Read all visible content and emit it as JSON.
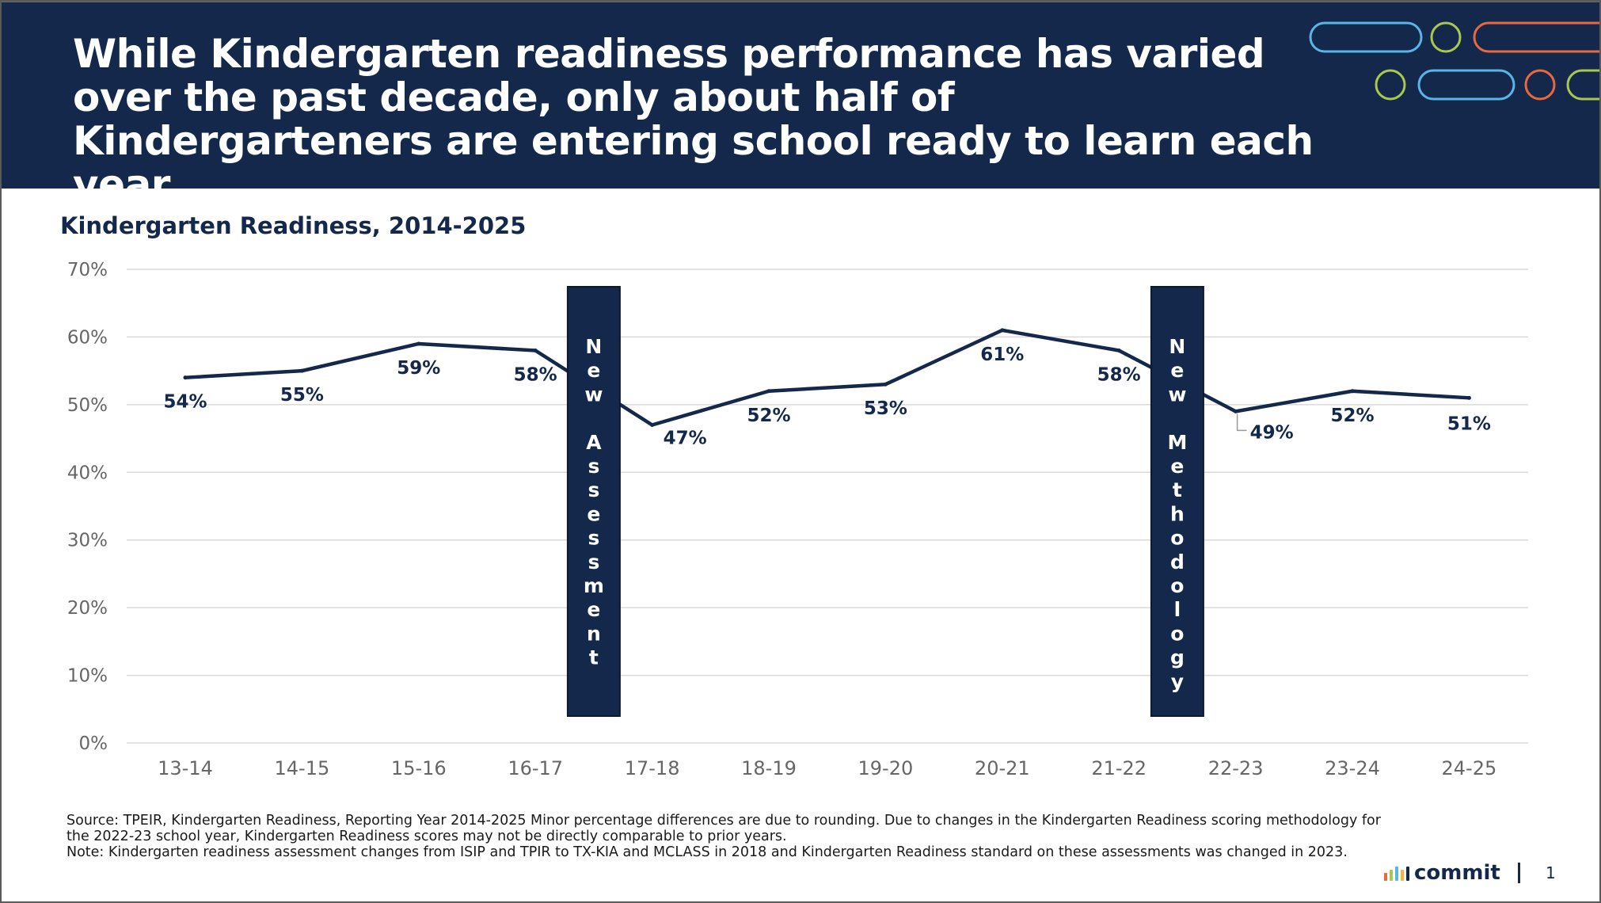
{
  "header": {
    "headline": "While Kindergarten readiness performance has varied over the past decade, only about half of Kindergarteners are entering school ready to learn each year."
  },
  "chart_data": {
    "type": "line",
    "title": "Kindergarten Readiness, 2014-2025",
    "xlabel": "",
    "ylabel": "",
    "ylim": [
      0,
      70
    ],
    "grid": true,
    "y_ticks": [
      "0%",
      "10%",
      "20%",
      "30%",
      "40%",
      "50%",
      "60%",
      "70%"
    ],
    "categories": [
      "13-14",
      "14-15",
      "15-16",
      "16-17",
      "17-18",
      "18-19",
      "19-20",
      "20-21",
      "21-22",
      "22-23",
      "23-24",
      "24-25"
    ],
    "series": [
      {
        "name": "Kindergarten Readiness",
        "values": [
          54,
          55,
          59,
          58,
          47,
          52,
          53,
          61,
          58,
          49,
          52,
          51
        ],
        "labels": [
          "54%",
          "55%",
          "59%",
          "58%",
          "47%",
          "52%",
          "53%",
          "61%",
          "58%",
          "49%",
          "52%",
          "51%"
        ],
        "color": "#13284a"
      }
    ],
    "annotations": [
      {
        "text": "New Assessment",
        "after_category": "16-17"
      },
      {
        "text": "New Methodology",
        "after_category": "21-22"
      }
    ]
  },
  "footnote": {
    "source": "Source: TPEIR, Kindergarten Readiness, Reporting Year 2014-2025 Minor percentage differences are due to rounding. Due to changes in the Kindergarten Readiness scoring methodology for the 2022-23 school year, Kindergarten Readiness scores may not be directly comparable to prior years.",
    "note": "Note: Kindergarten readiness assessment changes from ISIP and TPIR to TX-KIA and MCLASS in 2018 and Kindergarten Readiness standard on these assessments was changed in 2023."
  },
  "brand": {
    "name": "commit",
    "logo_colors": [
      "#e8683f",
      "#a8c94f",
      "#5bb4e6",
      "#f2b63c",
      "#13284a"
    ]
  },
  "page_number": "1",
  "colors": {
    "navy": "#13284a",
    "deco_blue": "#5bb4e6",
    "deco_green": "#a8c94f",
    "deco_orange": "#e8683f",
    "grid": "#d9d9d9",
    "axis_text": "#666666"
  }
}
